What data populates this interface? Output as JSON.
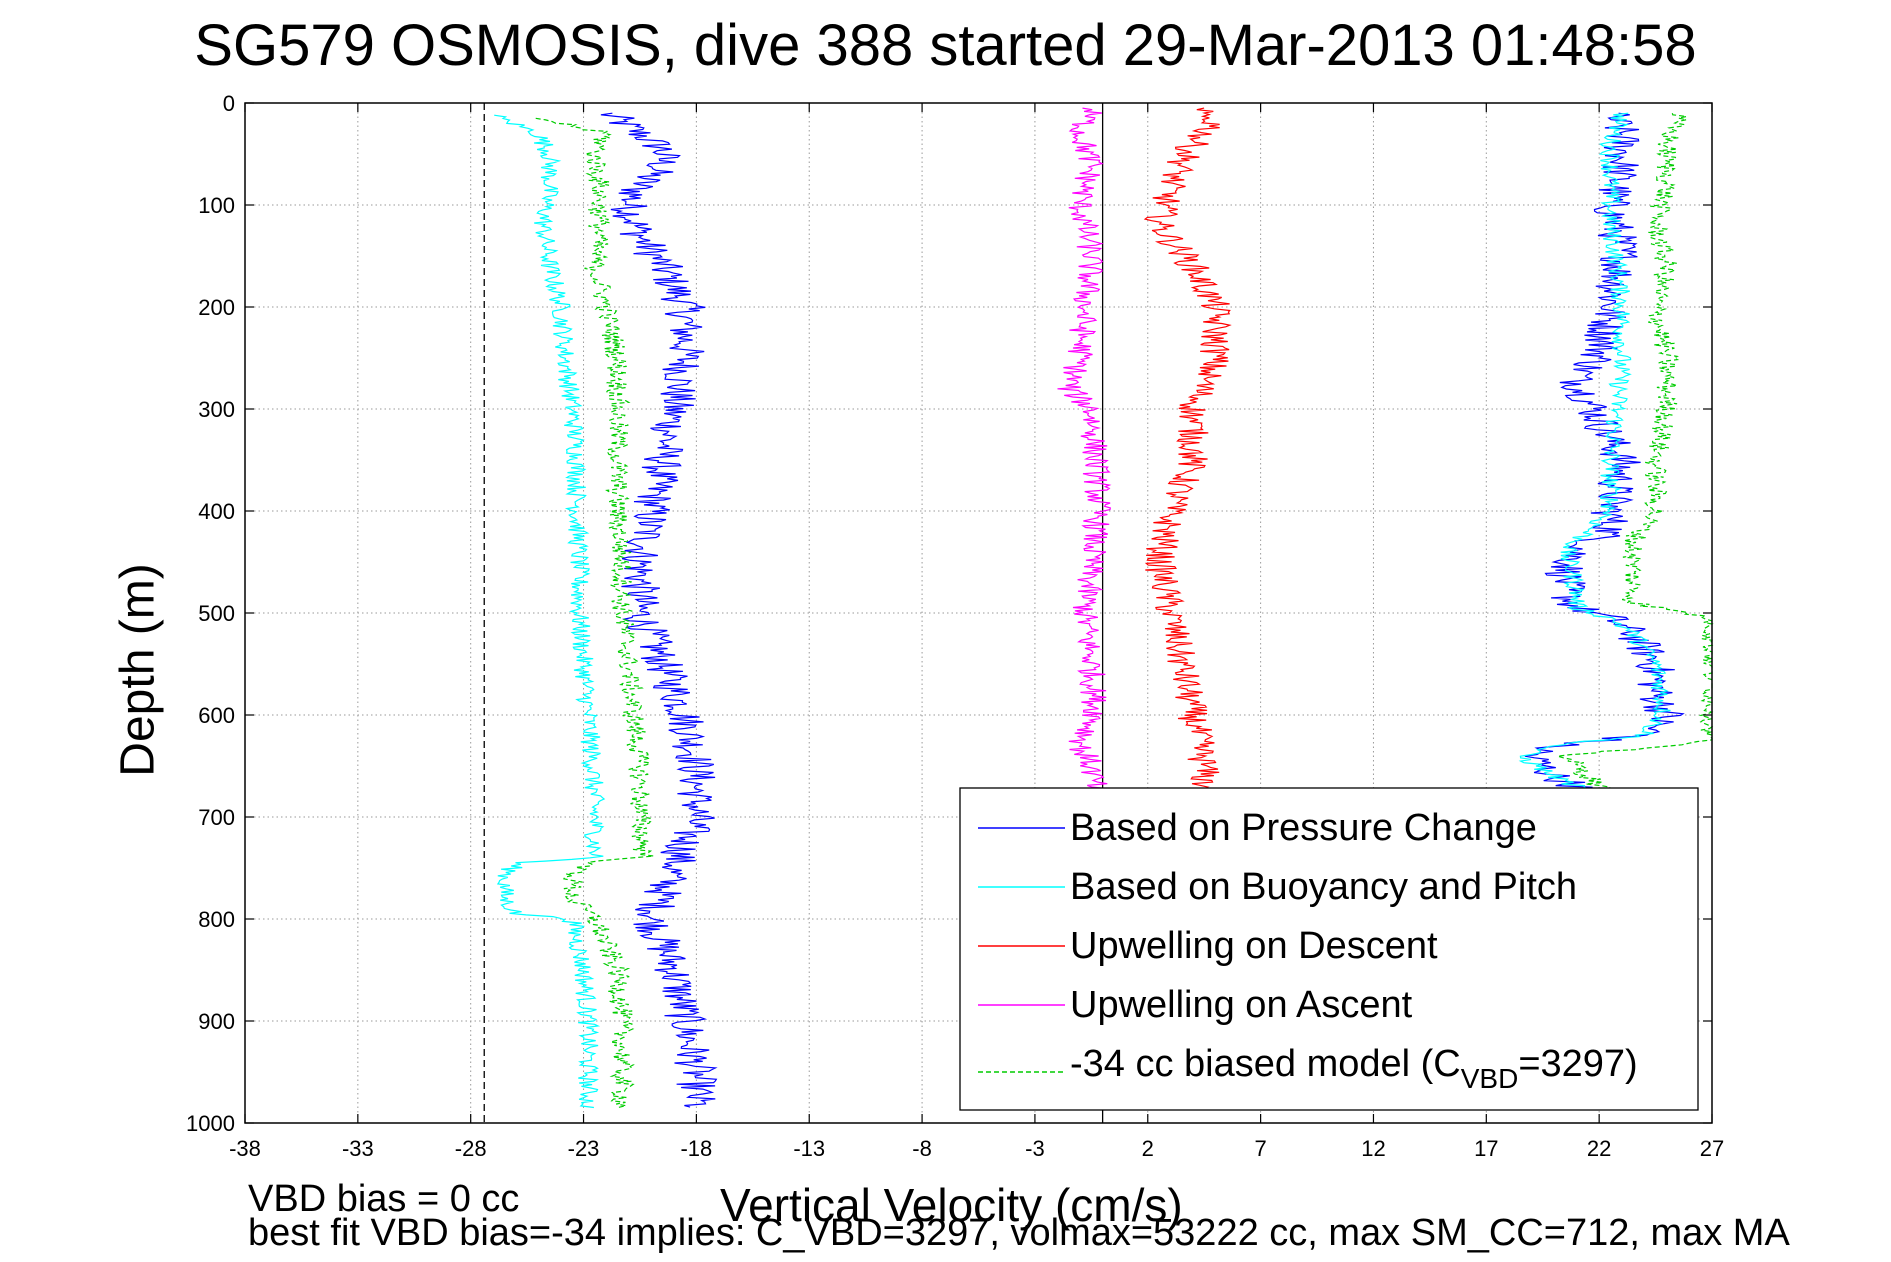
{
  "chart_data": {
    "type": "line",
    "title": "SG579 OSMOSIS, dive 388 started 29-Mar-2013 01:48:58",
    "xlabel": "Vertical Velocity (cm/s)",
    "ylabel": "Depth (m)",
    "xlim": [
      -38,
      27
    ],
    "ylim": [
      0,
      1000
    ],
    "y_reversed": true,
    "grid": true,
    "x_ticks": [
      -38,
      -33,
      -28,
      -23,
      -18,
      -13,
      -8,
      -3,
      2,
      7,
      12,
      17,
      22,
      27
    ],
    "y_ticks": [
      0,
      100,
      200,
      300,
      400,
      500,
      600,
      700,
      800,
      900,
      1000
    ],
    "x_tick_labels": [
      "-38",
      "-33",
      "-28",
      "-23",
      "-18",
      "-13",
      "-8",
      "-3",
      "2",
      "7",
      "12",
      "17",
      "22",
      "27"
    ],
    "y_tick_labels": [
      "0",
      "100",
      "200",
      "300",
      "400",
      "500",
      "600",
      "700",
      "800",
      "900",
      "1000"
    ],
    "reference_lines": [
      {
        "x": 0,
        "style": "solid",
        "color": "#000000"
      },
      {
        "x": -27.4,
        "style": "dashed",
        "color": "#000000"
      }
    ],
    "legend_position": "bottom-right",
    "series": [
      {
        "name": "Based on Pressure Change",
        "color": "#0000ff",
        "style": "solid",
        "noise": 0.9,
        "segments": [
          {
            "depth": [
              10,
              30,
              45,
              60,
              80,
              100,
              130,
              160,
              200,
              250,
              300,
              350,
              400,
              450,
              500,
              550,
              600,
              650,
              700,
              750,
              800,
              850,
              900,
              950,
              985
            ],
            "vel": [
              -22,
              -20.5,
              -19.5,
              -19.5,
              -20.5,
              -21,
              -20.5,
              -19.5,
              -18.5,
              -18.5,
              -19,
              -19.5,
              -20,
              -20.5,
              -20.5,
              -19.5,
              -18.5,
              -18,
              -18,
              -19,
              -20,
              -19,
              -18.5,
              -18,
              -18
            ]
          },
          {
            "depth": [
              10,
              30,
              60,
              100,
              150,
              200,
              250,
              270,
              290,
              310,
              350,
              400,
              420,
              440,
              460,
              480,
              495,
              505,
              520,
              550,
              580,
              600,
              620,
              630,
              640,
              660,
              680
            ],
            "vel": [
              22.5,
              23,
              23,
              22.5,
              23,
              22.5,
              22,
              21,
              21.5,
              22,
              23,
              22.5,
              22.5,
              21,
              20.5,
              20.5,
              21,
              22.5,
              23.5,
              24.5,
              24.5,
              25,
              24,
              20,
              19,
              20,
              22
            ]
          }
        ]
      },
      {
        "name": "Based on Buoyancy and Pitch",
        "color": "#00ffff",
        "style": "solid",
        "noise": 0.45,
        "segments": [
          {
            "depth": [
              12,
              30,
              50,
              80,
              120,
              160,
              200,
              250,
              300,
              350,
              400,
              450,
              500,
              550,
              600,
              650,
              700,
              740,
              745,
              760,
              780,
              795,
              800,
              850,
              900,
              950,
              985
            ],
            "vel": [
              -27,
              -25,
              -24.5,
              -24.5,
              -24.8,
              -24.5,
              -24,
              -23.8,
              -23.5,
              -23.3,
              -23.3,
              -23.2,
              -23.2,
              -23,
              -22.8,
              -22.6,
              -22.5,
              -22.5,
              -26,
              -26.5,
              -26.5,
              -26,
              -23.5,
              -23,
              -22.8,
              -22.8,
              -22.8
            ]
          },
          {
            "depth": [
              10,
              40,
              80,
              120,
              160,
              200,
              250,
              300,
              350,
              400,
              420,
              440,
              460,
              480,
              495,
              505,
              520,
              550,
              580,
              600,
              620,
              630,
              640,
              660,
              680
            ],
            "vel": [
              23,
              22.5,
              22.5,
              22.5,
              22.8,
              23,
              23,
              22.8,
              22.5,
              22.5,
              21.5,
              20.5,
              20.8,
              21,
              21,
              22.5,
              23.5,
              24.5,
              24.8,
              24.8,
              24,
              20,
              18.5,
              20,
              22
            ]
          }
        ]
      },
      {
        "name": "Upwelling on Descent",
        "color": "#ff0000",
        "style": "solid",
        "noise": 0.7,
        "segments": [
          {
            "depth": [
              5,
              20,
              40,
              80,
              120,
              160,
              200,
              250,
              300,
              350,
              400,
              450,
              500,
              550,
              600,
              650,
              680
            ],
            "vel": [
              4,
              5,
              4,
              3,
              2.5,
              4,
              5,
              5,
              4,
              4,
              3,
              2.5,
              3,
              3.5,
              4,
              4.5,
              4.5
            ]
          }
        ]
      },
      {
        "name": "Upwelling on Ascent",
        "color": "#ff00ff",
        "style": "solid",
        "noise": 0.6,
        "segments": [
          {
            "depth": [
              5,
              30,
              60,
              100,
              150,
              200,
              250,
              280,
              300,
              350,
              400,
              450,
              500,
              550,
              600,
              630,
              650,
              680
            ],
            "vel": [
              -0.5,
              -1,
              -0.5,
              -1,
              -0.5,
              -0.8,
              -1,
              -1.5,
              -0.5,
              -0.3,
              -0.2,
              -0.5,
              -0.8,
              -0.5,
              -0.3,
              -1,
              -0.5,
              -0.3
            ]
          }
        ]
      },
      {
        "name": "-34 cc biased model (C_VBD=3297)",
        "color": "#00cc00",
        "style": "dashed",
        "noise": 0.5,
        "segments": [
          {
            "depth": [
              15,
              30,
              50,
              80,
              120,
              160,
              200,
              250,
              300,
              350,
              400,
              450,
              500,
              550,
              600,
              650,
              700,
              740,
              745,
              760,
              780,
              800,
              850,
              900,
              950,
              985
            ],
            "vel": [
              -25,
              -22,
              -22.5,
              -22.3,
              -22.3,
              -22.5,
              -22,
              -21.5,
              -21.5,
              -21.5,
              -21.5,
              -21.3,
              -21.3,
              -21,
              -20.8,
              -20.5,
              -20.5,
              -20.3,
              -23,
              -23.5,
              -23.5,
              -22.5,
              -21.5,
              -21.3,
              -21.3,
              -21.3
            ]
          },
          {
            "depth": [
              10,
              40,
              80,
              120,
              160,
              200,
              250,
              300,
              350,
              400,
              430,
              460,
              490,
              505,
              520,
              560,
              600,
              625,
              640,
              660,
              680
            ],
            "vel": [
              25.5,
              25,
              25,
              24.5,
              25,
              24.5,
              25,
              25,
              24.5,
              24.5,
              23.5,
              23.5,
              23.5,
              27,
              27,
              27,
              27,
              27,
              20.5,
              21.5,
              22.5
            ]
          }
        ]
      }
    ],
    "legend": [
      {
        "label": "Based on Pressure Change",
        "color": "#0000ff",
        "style": "solid"
      },
      {
        "label": "Based on Buoyancy and Pitch",
        "color": "#00ffff",
        "style": "solid"
      },
      {
        "label": "Upwelling on Descent",
        "color": "#ff0000",
        "style": "solid"
      },
      {
        "label": "Upwelling on Ascent",
        "color": "#ff00ff",
        "style": "solid"
      },
      {
        "label_main": "-34 cc biased model (C",
        "label_sub": "VBD",
        "label_tail": "=3297)",
        "color": "#00cc00",
        "style": "dashed"
      }
    ]
  },
  "footer": {
    "line1": "VBD bias = 0 cc",
    "line2": "best fit VBD bias=-34 implies: C_VBD=3297, volmax=53222 cc, max SM_CC=712, max MA"
  }
}
